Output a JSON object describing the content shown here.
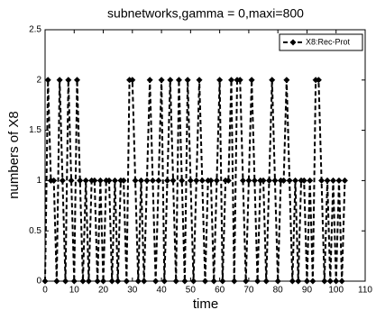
{
  "chart_data": {
    "type": "line",
    "title": "subnetworks,gamma = 0,maxi=800",
    "xlabel": "time",
    "ylabel": "numbers of X8",
    "x": [
      0,
      1,
      2,
      3,
      4,
      5,
      6,
      7,
      8,
      9,
      10,
      11,
      12,
      13,
      14,
      15,
      16,
      17,
      18,
      19,
      20,
      21,
      22,
      23,
      24,
      25,
      26,
      27,
      28,
      29,
      30,
      31,
      32,
      33,
      34,
      35,
      36,
      37,
      38,
      39,
      40,
      41,
      42,
      43,
      44,
      45,
      46,
      47,
      48,
      49,
      50,
      51,
      52,
      53,
      54,
      55,
      56,
      57,
      58,
      59,
      60,
      61,
      62,
      63,
      64,
      65,
      66,
      67,
      68,
      69,
      70,
      71,
      72,
      73,
      74,
      75,
      76,
      77,
      78,
      79,
      80,
      81,
      82,
      83,
      84,
      85,
      86,
      87,
      88,
      89,
      90,
      91,
      92,
      93,
      94,
      95,
      96,
      97,
      98,
      99,
      100,
      101,
      102,
      103
    ],
    "series": [
      {
        "name": "X8:Rec-Prot",
        "color": "#000000",
        "values": [
          0,
          2,
          1,
          1,
          0,
          2,
          1,
          0,
          2,
          1,
          0,
          2,
          1,
          0,
          1,
          0,
          1,
          1,
          0,
          1,
          0,
          1,
          1,
          0,
          1,
          0,
          1,
          1,
          0,
          2,
          2,
          1,
          0,
          1,
          0,
          1,
          2,
          1,
          0,
          1,
          2,
          0,
          1,
          2,
          1,
          0,
          2,
          1,
          0,
          2,
          1,
          0,
          1,
          2,
          1,
          0,
          1,
          1,
          0,
          1,
          2,
          0,
          1,
          1,
          2,
          0,
          2,
          2,
          1,
          0,
          1,
          2,
          1,
          0,
          1,
          1,
          0,
          1,
          2,
          1,
          0,
          1,
          1,
          2,
          1,
          0,
          1,
          0,
          1,
          1,
          0,
          1,
          0,
          2,
          2,
          1,
          0,
          1,
          0,
          1,
          0,
          1,
          0,
          1
        ]
      }
    ],
    "xlim": [
      0,
      110
    ],
    "xticks": [
      0,
      10,
      20,
      30,
      40,
      50,
      60,
      70,
      80,
      90,
      100,
      110
    ],
    "ylim": [
      0,
      2.5
    ],
    "yticks": [
      0,
      0.5,
      1,
      1.5,
      2,
      2.5
    ],
    "legend": "upper right"
  }
}
